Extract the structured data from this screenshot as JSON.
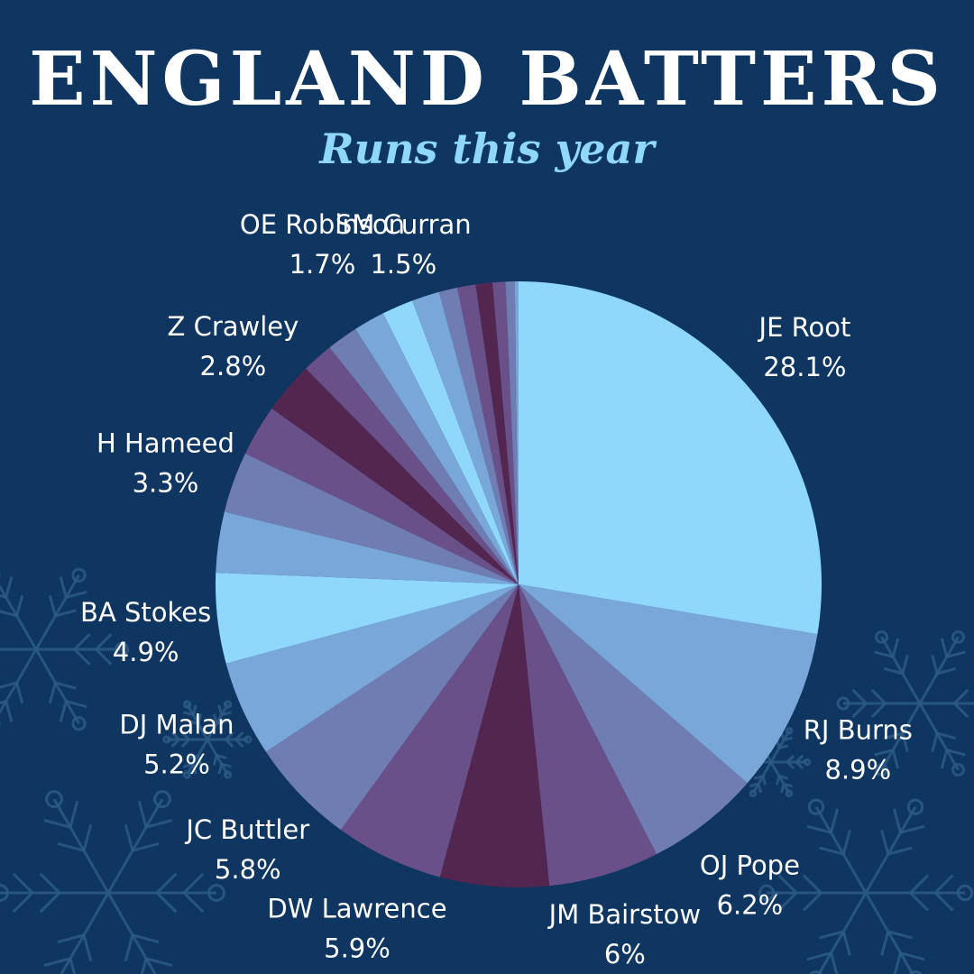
{
  "title": "ENGLAND BATTERS",
  "subtitle": "Runs this year",
  "chart_data": {
    "type": "pie",
    "title": "ENGLAND BATTERS",
    "subtitle": "Runs this year",
    "slices": [
      {
        "label": "JE Root",
        "value": 28.1,
        "text": "28.1%",
        "color": "#8fd8fb"
      },
      {
        "label": "RJ Burns",
        "value": 8.9,
        "text": "8.9%",
        "color": "#79a7d9"
      },
      {
        "label": "OJ Pope",
        "value": 6.2,
        "text": "6.2%",
        "color": "#707db3"
      },
      {
        "label": "JM Bairstow",
        "value": 6,
        "text": "6%",
        "color": "#6a5089"
      },
      {
        "label": "",
        "value": 5.9,
        "text": "",
        "color": "#532650"
      },
      {
        "label": "DW Lawrence",
        "value": 5.9,
        "text": "5.9%",
        "color": "#6a5089"
      },
      {
        "label": "JC Buttler",
        "value": 5.8,
        "text": "5.8%",
        "color": "#707db3"
      },
      {
        "label": "DJ Malan",
        "value": 5.2,
        "text": "5.2%",
        "color": "#79a7d9"
      },
      {
        "label": "BA Stokes",
        "value": 4.9,
        "text": "4.9%",
        "color": "#8fd8fb"
      },
      {
        "label": "",
        "value": 3.3,
        "text": "",
        "color": "#79a7d9"
      },
      {
        "label": "H Hameed",
        "value": 3.3,
        "text": "3.3%",
        "color": "#707db3"
      },
      {
        "label": "",
        "value": 2.8,
        "text": "",
        "color": "#6a5089"
      },
      {
        "label": "Z Crawley",
        "value": 2.8,
        "text": "2.8%",
        "color": "#532650"
      },
      {
        "label": "",
        "value": 1.7,
        "text": "",
        "color": "#6a5089"
      },
      {
        "label": "",
        "value": 1.7,
        "text": "",
        "color": "#707db3"
      },
      {
        "label": "OE Robinson",
        "value": 1.7,
        "text": "1.7%",
        "color": "#79a7d9"
      },
      {
        "label": "",
        "value": 1.7,
        "text": "",
        "color": "#8fd8fb"
      },
      {
        "label": "SM Curran",
        "value": 1.5,
        "text": "1.5%",
        "color": "#79a7d9"
      },
      {
        "label": "",
        "value": 1.0,
        "text": "",
        "color": "#707db3"
      },
      {
        "label": "",
        "value": 1.0,
        "text": "",
        "color": "#6a5089"
      },
      {
        "label": "",
        "value": 0.9,
        "text": "",
        "color": "#532650"
      },
      {
        "label": "",
        "value": 0.7,
        "text": "",
        "color": "#6a5089"
      },
      {
        "label": "",
        "value": 0.5,
        "text": "",
        "color": "#707db3"
      },
      {
        "label": "",
        "value": 0.2,
        "text": "",
        "color": "#79a7d9"
      }
    ]
  }
}
